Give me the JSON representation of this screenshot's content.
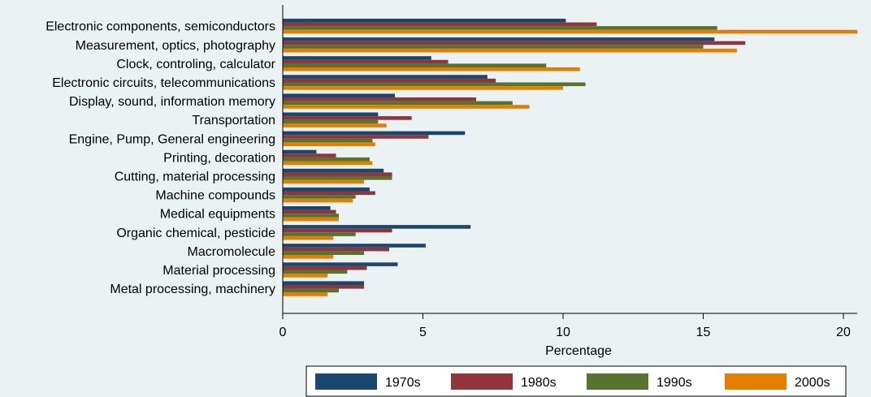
{
  "chart_data": {
    "type": "bar",
    "orientation": "horizontal",
    "categories": [
      "Electronic components, semiconductors",
      "Measurement, optics, photography",
      "Clock, controling, calculator",
      "Electronic circuits, telecommunications",
      "Display, sound, information memory",
      "Transportation",
      "Engine, Pump, General engineering",
      "Printing, decoration",
      "Cutting, material processing",
      "Machine compounds",
      "Medical equipments",
      "Organic chemical, pesticide",
      "Macromolecule",
      "Material processing",
      "Metal processing, machinery"
    ],
    "series": [
      {
        "name": "1970s",
        "color": "#1a476f",
        "values": [
          10.1,
          15.4,
          5.3,
          7.3,
          4.0,
          3.4,
          6.5,
          1.2,
          3.6,
          3.1,
          1.7,
          6.7,
          5.1,
          4.1,
          2.9
        ]
      },
      {
        "name": "1980s",
        "color": "#90353b",
        "values": [
          11.2,
          16.5,
          5.9,
          7.6,
          6.9,
          4.6,
          5.2,
          1.9,
          3.9,
          3.3,
          1.9,
          3.9,
          3.8,
          3.0,
          2.9
        ]
      },
      {
        "name": "1990s",
        "color": "#55752f",
        "values": [
          15.5,
          15.0,
          9.4,
          10.8,
          8.2,
          3.4,
          3.2,
          3.1,
          3.9,
          2.6,
          2.0,
          2.6,
          2.9,
          2.3,
          2.0
        ]
      },
      {
        "name": "2000s",
        "color": "#e37e00",
        "values": [
          20.5,
          16.2,
          10.6,
          10.0,
          8.8,
          3.7,
          3.3,
          3.2,
          2.9,
          2.5,
          2.0,
          1.8,
          1.8,
          1.6,
          1.6
        ]
      }
    ],
    "xlabel": "Percentage",
    "xlim": [
      0,
      20.6
    ],
    "xticks": [
      0,
      5,
      10,
      15,
      20
    ],
    "grid": false,
    "legend_position": "bottom-right"
  }
}
